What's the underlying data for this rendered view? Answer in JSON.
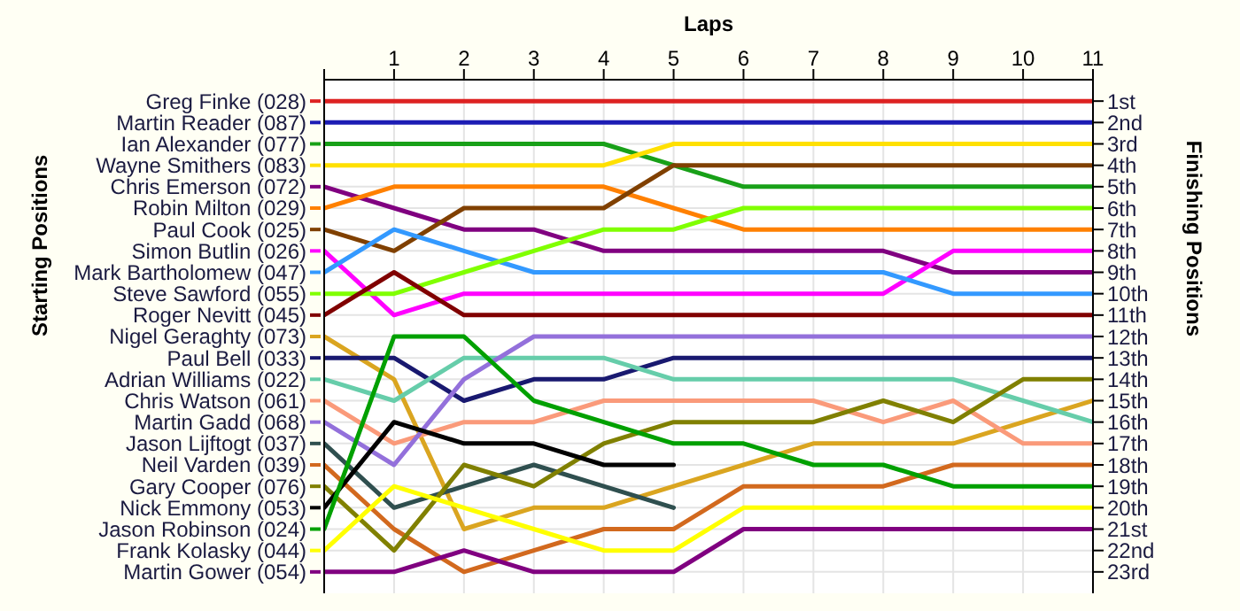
{
  "chart_data": {
    "type": "line",
    "xlabel": "Laps",
    "ylabel": "Finishing Positions",
    "legend_title": "Starting Positions",
    "x": [
      0,
      1,
      2,
      3,
      4,
      5,
      6,
      7,
      8,
      9,
      10,
      11
    ],
    "xlim": [
      0,
      11
    ],
    "xticks": [
      {
        "value": 0,
        "label": null
      },
      1,
      2,
      3,
      4,
      5,
      6,
      7,
      8,
      9,
      10,
      11
    ],
    "ylim": [
      24,
      0
    ],
    "yticks": [
      {
        "value": 1,
        "label": "1st"
      },
      {
        "value": 2,
        "label": "2nd"
      },
      {
        "value": 3,
        "label": "3rd"
      },
      {
        "value": 4,
        "label": "4th"
      },
      {
        "value": 5,
        "label": "5th"
      },
      {
        "value": 6,
        "label": "6th"
      },
      {
        "value": 7,
        "label": "7th"
      },
      {
        "value": 8,
        "label": "8th"
      },
      {
        "value": 9,
        "label": "9th"
      },
      {
        "value": 10,
        "label": "10th"
      },
      {
        "value": 11,
        "label": "11th"
      },
      {
        "value": 12,
        "label": "12th"
      },
      {
        "value": 13,
        "label": "13th"
      },
      {
        "value": 14,
        "label": "14th"
      },
      {
        "value": 15,
        "label": "15th"
      },
      {
        "value": 16,
        "label": "16th"
      },
      {
        "value": 17,
        "label": "17th"
      },
      {
        "value": 18,
        "label": "18th"
      },
      {
        "value": 19,
        "label": "19th"
      },
      {
        "value": 20,
        "label": "20th"
      },
      {
        "value": 21,
        "label": "21st"
      },
      {
        "value": 22,
        "label": "22nd"
      },
      {
        "value": 23,
        "label": "23rd"
      }
    ],
    "grid": true,
    "legend": "left",
    "marker": "none",
    "line_style": "solid",
    "series": [
      {
        "name": "Greg Finke (028)",
        "color": "#dd2222",
        "values": [
          1,
          1,
          1,
          1,
          1,
          1,
          1,
          1,
          1,
          1,
          1,
          1
        ]
      },
      {
        "name": "Martin Reader (087)",
        "color": "#1c1cb4",
        "values": [
          2,
          2,
          2,
          2,
          2,
          2,
          2,
          2,
          2,
          2,
          2,
          2
        ]
      },
      {
        "name": "Ian Alexander (077)",
        "color": "#18a018",
        "values": [
          3,
          3,
          3,
          3,
          3,
          4,
          5,
          5,
          5,
          5,
          5,
          5
        ]
      },
      {
        "name": "Wayne Smithers (083)",
        "color": "#ffe000",
        "values": [
          4,
          4,
          4,
          4,
          4,
          3,
          3,
          3,
          3,
          3,
          3,
          3
        ]
      },
      {
        "name": "Chris Emerson (072)",
        "color": "#800080",
        "values": [
          5,
          6,
          7,
          7,
          8,
          8,
          8,
          8,
          8,
          9,
          9,
          9
        ]
      },
      {
        "name": "Robin Milton (029)",
        "color": "#ff8000",
        "values": [
          6,
          5,
          5,
          5,
          5,
          6,
          7,
          7,
          7,
          7,
          7,
          7
        ]
      },
      {
        "name": "Paul Cook (025)",
        "color": "#804000",
        "values": [
          7,
          8,
          6,
          6,
          6,
          4,
          4,
          4,
          4,
          4,
          4,
          4
        ]
      },
      {
        "name": "Simon Butlin (026)",
        "color": "#ff00ff",
        "values": [
          8,
          11,
          10,
          10,
          10,
          10,
          10,
          10,
          10,
          8,
          8,
          8
        ]
      },
      {
        "name": "Mark Bartholomew (047)",
        "color": "#3399ff",
        "values": [
          9,
          7,
          8,
          9,
          9,
          9,
          9,
          9,
          9,
          10,
          10,
          10
        ]
      },
      {
        "name": "Steve Sawford (055)",
        "color": "#80ff00",
        "values": [
          10,
          10,
          9,
          8,
          7,
          7,
          6,
          6,
          6,
          6,
          6,
          6
        ]
      },
      {
        "name": "Roger Nevitt (045)",
        "color": "#800000",
        "values": [
          11,
          9,
          11,
          11,
          11,
          11,
          11,
          11,
          11,
          11,
          11,
          11
        ]
      },
      {
        "name": "Nigel Geraghty (073)",
        "color": "#daa520",
        "values": [
          12,
          14,
          21,
          20,
          20,
          19,
          18,
          17,
          17,
          17,
          16,
          15
        ]
      },
      {
        "name": "Paul Bell (033)",
        "color": "#191970",
        "values": [
          13,
          13,
          15,
          14,
          14,
          13,
          13,
          13,
          13,
          13,
          13,
          13
        ]
      },
      {
        "name": "Adrian Williams (022)",
        "color": "#66cdaa",
        "values": [
          14,
          15,
          13,
          13,
          13,
          14,
          14,
          14,
          14,
          14,
          15,
          16
        ]
      },
      {
        "name": "Chris Watson (061)",
        "color": "#fa9a7a",
        "values": [
          15,
          17,
          16,
          16,
          15,
          15,
          15,
          15,
          16,
          15,
          17,
          17
        ]
      },
      {
        "name": "Martin Gadd (068)",
        "color": "#9370db",
        "values": [
          16,
          18,
          14,
          12,
          12,
          12,
          12,
          12,
          12,
          12,
          12,
          12
        ]
      },
      {
        "name": "Jason Lijftogt (037)",
        "color": "#2f4f4f",
        "values": [
          17,
          20,
          19,
          18,
          19,
          20,
          null,
          null,
          null,
          null,
          null,
          null
        ]
      },
      {
        "name": "Neil Varden (039)",
        "color": "#d2691e",
        "values": [
          18,
          21,
          23,
          22,
          21,
          21,
          19,
          19,
          19,
          18,
          18,
          18
        ]
      },
      {
        "name": "Gary Cooper (076)",
        "color": "#808000",
        "values": [
          19,
          22,
          18,
          19,
          17,
          16,
          16,
          16,
          15,
          16,
          14,
          14
        ]
      },
      {
        "name": "Nick Emmony (053)",
        "color": "#000000",
        "values": [
          20,
          16,
          17,
          17,
          18,
          18,
          null,
          null,
          null,
          null,
          null,
          null
        ]
      },
      {
        "name": "Jason Robinson (024)",
        "color": "#00a000",
        "values": [
          21,
          12,
          12,
          15,
          16,
          17,
          17,
          18,
          18,
          19,
          19,
          19
        ]
      },
      {
        "name": "Frank Kolasky (044)",
        "color": "#ffff00",
        "values": [
          22,
          19,
          20,
          21,
          22,
          22,
          20,
          20,
          20,
          20,
          20,
          20
        ]
      },
      {
        "name": "Martin Gower (054)",
        "color": "#800080",
        "values": [
          23,
          23,
          22,
          23,
          23,
          23,
          21,
          21,
          21,
          21,
          21,
          21
        ]
      }
    ]
  }
}
